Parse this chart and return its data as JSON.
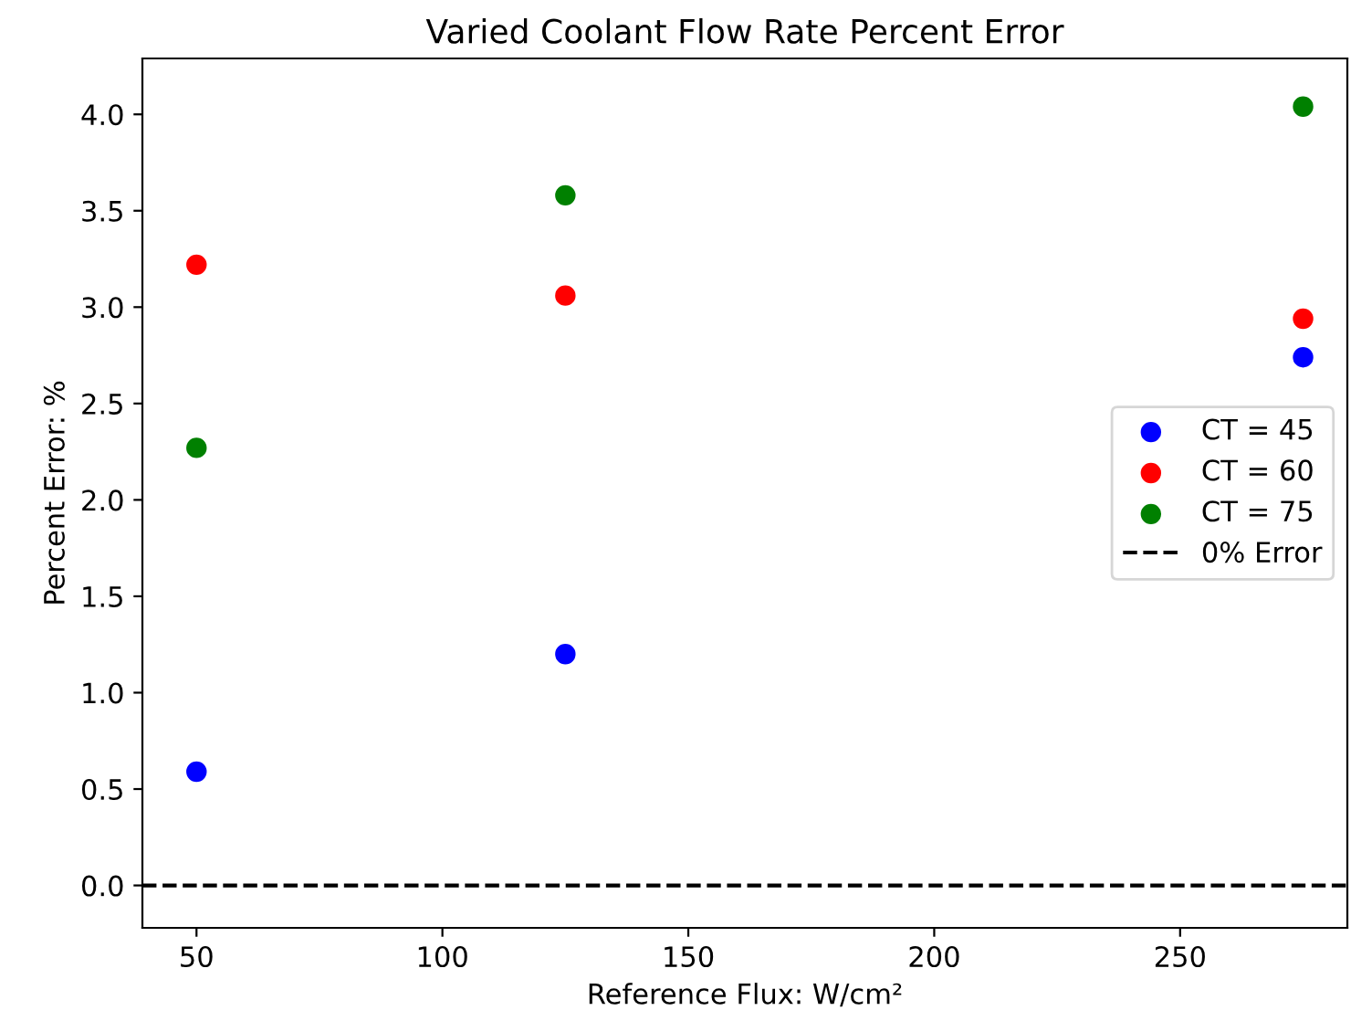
{
  "chart_data": {
    "type": "scatter",
    "title": "Varied Coolant Flow Rate Percent Error",
    "xlabel": "Reference Flux: W/cm²",
    "ylabel": "Percent Error: %",
    "x": [
      50,
      125,
      275
    ],
    "series": [
      {
        "name": "CT = 45",
        "color": "#0000ff",
        "values": [
          0.59,
          1.2,
          2.74
        ]
      },
      {
        "name": "CT = 60",
        "color": "#ff0000",
        "values": [
          3.22,
          3.06,
          2.94
        ]
      },
      {
        "name": "CT = 75",
        "color": "#008000",
        "values": [
          2.27,
          3.58,
          4.04
        ]
      }
    ],
    "ref_lines": [
      {
        "axis": "y",
        "value": 0,
        "label": "0% Error",
        "color": "#000000",
        "line_style": "dashed"
      }
    ],
    "xlim": [
      39,
      284
    ],
    "xticks": [
      50,
      100,
      150,
      200,
      250
    ],
    "ylim": [
      -0.22,
      4.29
    ],
    "yticks": [
      {
        "value": 0,
        "label": "0.0"
      },
      {
        "value": 0.5,
        "label": "0.5"
      },
      {
        "value": 1,
        "label": "1.0"
      },
      {
        "value": 1.5,
        "label": "1.5"
      },
      {
        "value": 2,
        "label": "2.0"
      },
      {
        "value": 2.5,
        "label": "2.5"
      },
      {
        "value": 3,
        "label": "3.0"
      },
      {
        "value": 3.5,
        "label": "3.5"
      },
      {
        "value": 4,
        "label": "4.0"
      }
    ],
    "marker": "circle",
    "legend": "right",
    "grid": false
  }
}
